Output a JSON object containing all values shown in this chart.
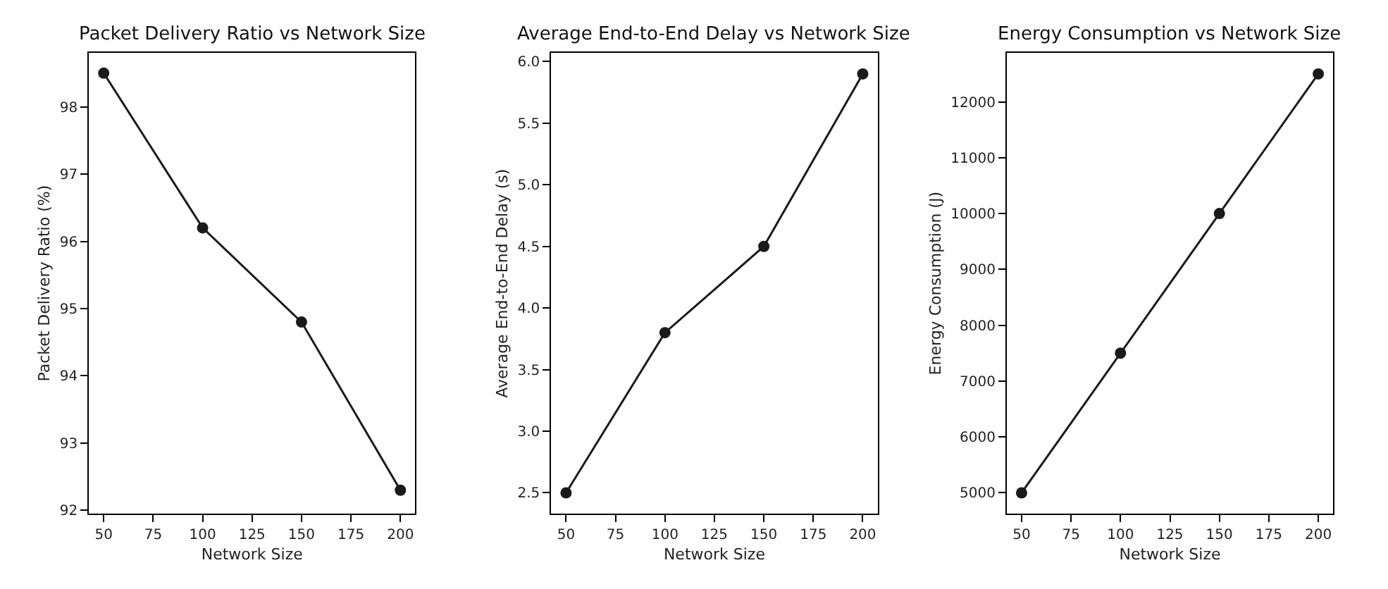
{
  "chart_data": [
    {
      "type": "line",
      "title": "Packet Delivery Ratio vs Network Size",
      "xlabel": "Network Size",
      "ylabel": "Packet Delivery Ratio (%)",
      "x": [
        50,
        100,
        150,
        200
      ],
      "series": [
        {
          "color": "#1a1a1a",
          "values": [
            98.5,
            96.2,
            94.8,
            92.3
          ]
        }
      ],
      "xlim": [
        42.5,
        207.5
      ],
      "xticks": [
        50,
        75,
        100,
        125,
        150,
        175,
        200
      ],
      "ylim": [
        91.95,
        98.8
      ],
      "yticks": [
        92,
        93,
        94,
        95,
        96,
        97,
        98
      ],
      "marker": "circle",
      "line_style": "solid"
    },
    {
      "type": "line",
      "title": "Average End-to-End Delay vs Network Size",
      "xlabel": "Network Size",
      "ylabel": "Average End-to-End Delay (s)",
      "x": [
        50,
        100,
        150,
        200
      ],
      "series": [
        {
          "color": "#1a1a1a",
          "values": [
            2.5,
            3.8,
            4.5,
            5.9
          ]
        }
      ],
      "xlim": [
        42.5,
        207.5
      ],
      "xticks": [
        50,
        75,
        100,
        125,
        150,
        175,
        200
      ],
      "ylim": [
        2.33,
        6.07
      ],
      "yticks": [
        2.5,
        {
          "value": 3,
          "label": "3.0"
        },
        3.5,
        {
          "value": 4,
          "label": "4.0"
        },
        4.5,
        {
          "value": 5,
          "label": "5.0"
        },
        5.5,
        {
          "value": 6,
          "label": "6.0"
        }
      ],
      "marker": "circle",
      "line_style": "solid"
    },
    {
      "type": "line",
      "title": "Energy Consumption vs Network Size",
      "xlabel": "Network Size",
      "ylabel": "Energy Consumption (J)",
      "x": [
        50,
        100,
        150,
        200
      ],
      "series": [
        {
          "color": "#1a1a1a",
          "values": [
            5000,
            7500,
            10000,
            12500
          ]
        }
      ],
      "xlim": [
        42.5,
        207.5
      ],
      "xticks": [
        50,
        75,
        100,
        125,
        150,
        175,
        200
      ],
      "ylim": [
        4625,
        12875
      ],
      "yticks": [
        5000,
        6000,
        7000,
        8000,
        9000,
        10000,
        11000,
        12000
      ],
      "marker": "circle",
      "line_style": "solid"
    }
  ]
}
